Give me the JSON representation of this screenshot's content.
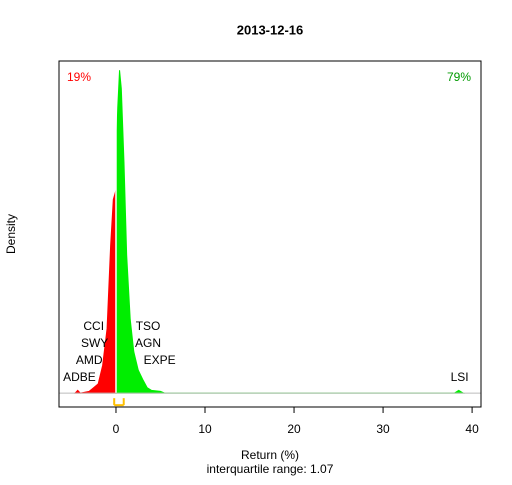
{
  "chart_data": {
    "type": "density",
    "title": "2013-12-16",
    "x_label": "Return (%)",
    "subtitle": "interquartile range: 1.07",
    "y_label": "Density",
    "xlim": [
      -6.4,
      41.0
    ],
    "ylim": [
      -0.015,
      0.36
    ],
    "xticks": [
      0,
      10,
      20,
      30,
      40
    ],
    "series": [
      {
        "color": "#ff0000",
        "x": [
          -4.6,
          -4.3,
          -4.0,
          -3.0,
          -2.5,
          -2.0,
          -1.5,
          -1.0,
          -0.6,
          -0.3,
          0
        ],
        "values": [
          0,
          0.003,
          0,
          0.002,
          0.006,
          0.01,
          0.03,
          0.07,
          0.16,
          0.21,
          0.22
        ]
      },
      {
        "color": "#00ee00",
        "x": [
          0,
          0.2,
          0.4,
          0.6,
          0.9,
          1.2,
          1.6,
          2.0,
          2.5,
          3.0,
          3.5,
          4.0,
          5.0,
          5.5,
          38.0,
          38.5,
          39.0
        ],
        "values": [
          0.25,
          0.31,
          0.35,
          0.33,
          0.25,
          0.15,
          0.08,
          0.045,
          0.025,
          0.015,
          0.006,
          0.003,
          0.002,
          0,
          0,
          0.003,
          0
        ]
      }
    ],
    "shares": {
      "values": [
        19,
        79
      ],
      "value_labels": [
        "19%",
        "79%"
      ],
      "colors": [
        "#ff0000",
        "#009900"
      ]
    },
    "quartiles": [
      -0.2,
      0.87
    ],
    "quartile_color": "#ffc000",
    "annotations": [
      {
        "text": "ADBE",
        "x": -4.1
      },
      {
        "text": "AMD",
        "x": -3.0
      },
      {
        "text": "SWY",
        "x": -2.4
      },
      {
        "text": "CCI",
        "x": -2.5
      },
      {
        "text": "TSO",
        "x": 3.6
      },
      {
        "text": "AGN",
        "x": 3.6
      },
      {
        "text": "EXPE",
        "x": 4.9
      },
      {
        "text": "LSI",
        "x": 38.6
      }
    ]
  }
}
